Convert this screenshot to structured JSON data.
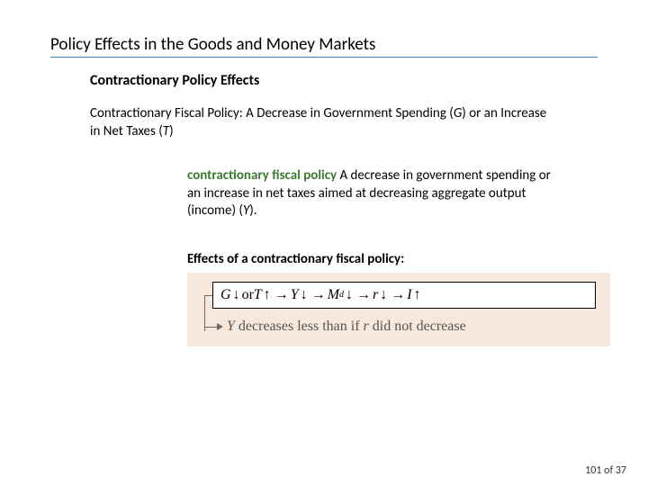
{
  "title": "Policy Effects in the Goods and Money Markets",
  "subtitle": "Contractionary Policy Effects",
  "subsubtitle_prefix": "Contractionary Fiscal Policy:  A Decrease in Government Spending (",
  "subsubtitle_G": "G",
  "subsubtitle_mid": ") or an Increase in Net Taxes (",
  "subsubtitle_T": "T",
  "subsubtitle_suffix": ")",
  "definition": {
    "term": "contractionary fiscal policy",
    "body_prefix": "  A decrease in government spending or an increase in net taxes aimed at decreasing aggregate output (income) (",
    "Y": "Y",
    "body_suffix": ")."
  },
  "effects_label": "Effects of a contractionary fiscal policy:",
  "chain": {
    "G": "G",
    "down1": "↓",
    "or": " or ",
    "T": "T",
    "up1": "↑",
    "imp1": "→",
    "Y": "Y",
    "down2": "↓",
    "imp2": "→",
    "M": "M",
    "d": "d",
    "down3": "↓",
    "imp3": "→",
    "r": "r",
    "down4": "↓",
    "imp4": "→",
    "I": "I",
    "up2": "↑"
  },
  "conclusion": {
    "Y": "Y",
    "text_mid": " decreases less than if ",
    "r": "r",
    "text_end": " did not decrease"
  },
  "pagenum": "101 of 37",
  "colors": {
    "accent_underline": "#4a7ab3",
    "term_green": "#3a7a2e",
    "diagram_bg": "#f7e8db"
  }
}
